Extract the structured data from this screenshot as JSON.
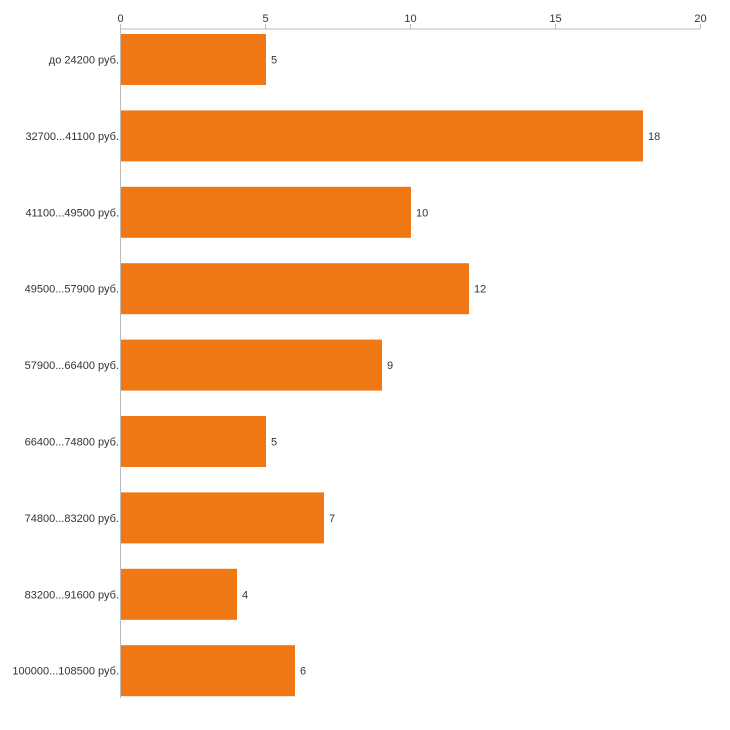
{
  "chart_data": {
    "type": "bar",
    "orientation": "horizontal",
    "title": "",
    "xlabel": "",
    "ylabel": "",
    "xlim": [
      0,
      20
    ],
    "x_ticks": [
      0,
      5,
      10,
      15,
      20
    ],
    "x_tick_labels": [
      "0",
      "5",
      "10",
      "15",
      "20"
    ],
    "axis_position": "top",
    "grid": false,
    "categories": [
      "до 24200 руб.",
      "32700...41100 руб.",
      "41100...49500 руб.",
      "49500...57900 руб.",
      "57900...66400 руб.",
      "66400...74800 руб.",
      "74800...83200 руб.",
      "83200...91600 руб.",
      "100000...108500 руб."
    ],
    "values": [
      5,
      18,
      10,
      12,
      9,
      5,
      7,
      4,
      6
    ],
    "value_labels": [
      "5",
      "18",
      "10",
      "12",
      "9",
      "5",
      "7",
      "4",
      "6"
    ],
    "bar_color": "#f07814",
    "axis_color": "#bbbbbb",
    "text_color": "#333333"
  }
}
